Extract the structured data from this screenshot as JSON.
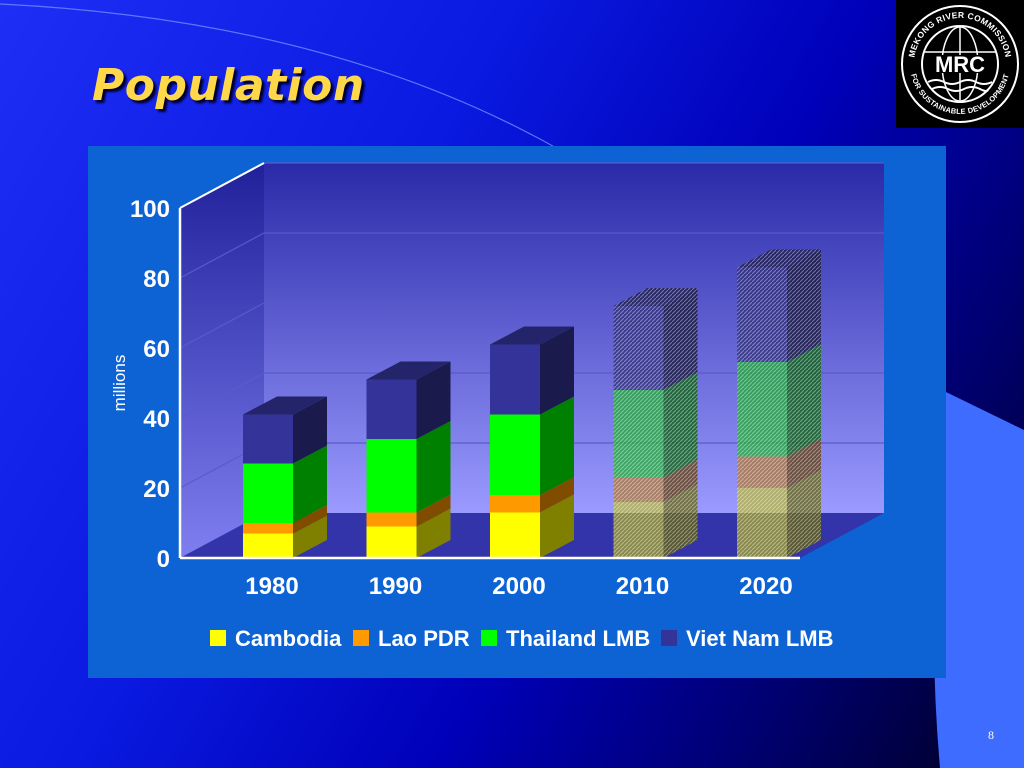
{
  "slide": {
    "title": "Population",
    "page_number": "8",
    "logo": {
      "abbr": "MRC",
      "ring_text_top": "MEKONG RIVER COMMISSION",
      "ring_text_bottom": "FOR SUSTAINABLE DEVELOPMENT"
    }
  },
  "colors": {
    "cambodia": "#ffff00",
    "lao": "#ff9900",
    "thailand": "#00ff00",
    "vietnam": "#333399",
    "title": "#ffd84a"
  },
  "chart_data": {
    "type": "bar",
    "stacked": true,
    "three_d": true,
    "categories": [
      "1980",
      "1990",
      "2000",
      "2010",
      "2020"
    ],
    "projected_categories": [
      "2010",
      "2020"
    ],
    "series": [
      {
        "name": "Cambodia",
        "values": [
          7,
          9,
          13,
          16,
          20
        ]
      },
      {
        "name": "Lao PDR",
        "values": [
          3,
          4,
          5,
          7,
          9
        ]
      },
      {
        "name": "Thailand LMB",
        "values": [
          17,
          21,
          23,
          25,
          27
        ]
      },
      {
        "name": "Viet Nam LMB",
        "values": [
          14,
          17,
          20,
          24,
          27
        ]
      }
    ],
    "ylabel": "millions",
    "yticks": [
      0,
      20,
      40,
      60,
      80,
      100
    ],
    "ylim": [
      0,
      100
    ],
    "grid": true,
    "legend_position": "bottom"
  }
}
